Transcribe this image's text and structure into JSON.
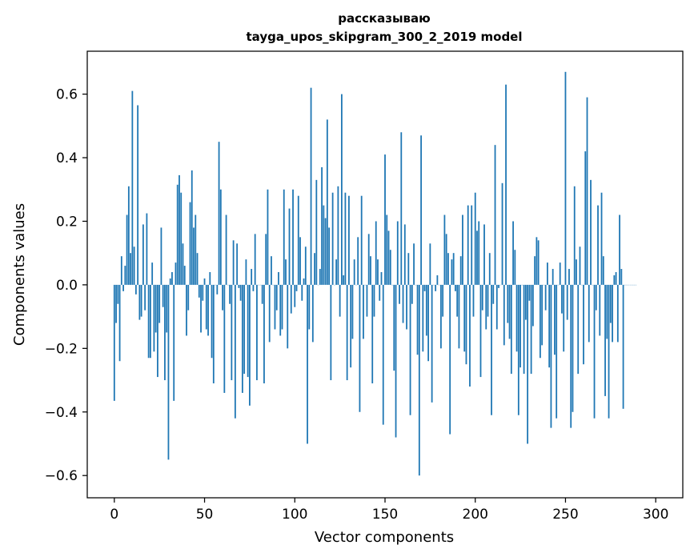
{
  "chart_data": {
    "type": "bar",
    "title": "рассказываю",
    "subtitle": "tayga_upos_skipgram_300_2_2019 model",
    "xlabel": "Vector components",
    "ylabel": "Components values",
    "xlim": [
      -15,
      315
    ],
    "ylim": [
      -0.67,
      0.735
    ],
    "xticks": [
      0,
      50,
      100,
      150,
      200,
      250,
      300
    ],
    "yticks": [
      -0.6,
      -0.4,
      -0.2,
      0.0,
      0.2,
      0.4,
      0.6
    ],
    "ytick_labels": [
      "−0.6",
      "−0.4",
      "−0.2",
      "0.0",
      "0.2",
      "0.4",
      "0.6"
    ],
    "grid": false,
    "legend": "none",
    "bar_color": "#1f77b4",
    "values": [
      -0.365,
      -0.12,
      -0.06,
      -0.24,
      0.09,
      -0.02,
      0.06,
      0.22,
      0.31,
      0.1,
      0.61,
      0.12,
      -0.03,
      0.565,
      -0.11,
      -0.1,
      0.19,
      -0.08,
      0.225,
      -0.23,
      -0.23,
      0.07,
      -0.21,
      -0.15,
      -0.29,
      -0.12,
      0.18,
      -0.07,
      -0.3,
      -0.15,
      -0.55,
      0.02,
      0.04,
      -0.365,
      0.07,
      0.315,
      0.345,
      0.29,
      0.13,
      0.06,
      -0.16,
      -0.08,
      0.26,
      0.36,
      0.18,
      0.22,
      0.1,
      -0.04,
      -0.15,
      -0.05,
      0.02,
      -0.14,
      -0.16,
      0.04,
      -0.23,
      -0.31,
      0.0,
      -0.03,
      0.45,
      0.3,
      -0.08,
      -0.34,
      0.22,
      0.0,
      -0.06,
      -0.3,
      0.14,
      -0.42,
      0.13,
      -0.01,
      -0.05,
      -0.34,
      -0.28,
      0.08,
      -0.29,
      -0.38,
      0.05,
      -0.02,
      0.16,
      -0.3,
      0.0,
      0.0,
      -0.06,
      -0.31,
      0.16,
      0.3,
      -0.18,
      0.09,
      0.0,
      -0.14,
      -0.08,
      0.04,
      -0.16,
      -0.14,
      0.3,
      0.08,
      -0.2,
      0.24,
      -0.09,
      0.3,
      -0.07,
      -0.02,
      0.28,
      0.15,
      -0.05,
      0.02,
      0.12,
      -0.5,
      -0.14,
      0.62,
      -0.18,
      0.1,
      0.33,
      0.0,
      0.05,
      0.37,
      0.25,
      0.21,
      0.52,
      0.18,
      -0.3,
      0.29,
      0.0,
      0.08,
      0.31,
      -0.1,
      0.6,
      0.03,
      0.29,
      -0.3,
      0.28,
      -0.26,
      -0.17,
      0.08,
      0.0,
      0.15,
      -0.4,
      0.28,
      -0.17,
      0.0,
      -0.1,
      0.16,
      0.09,
      -0.31,
      -0.1,
      0.2,
      0.08,
      -0.05,
      0.04,
      -0.44,
      0.41,
      0.22,
      0.17,
      0.11,
      0.0,
      -0.27,
      -0.48,
      0.2,
      -0.06,
      0.48,
      -0.12,
      0.19,
      -0.14,
      0.1,
      -0.41,
      -0.06,
      0.13,
      0.0,
      -0.22,
      -0.6,
      0.47,
      -0.21,
      -0.02,
      -0.16,
      -0.24,
      0.13,
      -0.37,
      0.0,
      -0.02,
      0.03,
      0.0,
      -0.2,
      -0.1,
      0.22,
      0.16,
      0.1,
      -0.47,
      0.08,
      0.1,
      -0.02,
      -0.1,
      -0.2,
      0.09,
      0.22,
      -0.21,
      -0.25,
      0.25,
      -0.32,
      0.25,
      -0.1,
      0.29,
      0.17,
      0.2,
      -0.29,
      -0.08,
      0.19,
      -0.14,
      -0.1,
      0.1,
      -0.41,
      -0.06,
      0.44,
      -0.14,
      -0.01,
      0.0,
      0.32,
      -0.19,
      0.63,
      -0.12,
      -0.17,
      -0.28,
      0.2,
      0.11,
      -0.21,
      -0.41,
      -0.26,
      0.0,
      -0.28,
      -0.11,
      -0.5,
      -0.05,
      -0.28,
      -0.13,
      0.09,
      0.15,
      0.14,
      -0.23,
      -0.19,
      0.0,
      -0.08,
      0.07,
      -0.26,
      -0.45,
      0.05,
      -0.22,
      -0.42,
      0.0,
      0.07,
      -0.09,
      -0.21,
      0.67,
      -0.11,
      0.05,
      -0.45,
      -0.4,
      0.31,
      0.08,
      -0.28,
      0.12,
      0.0,
      -0.25,
      0.42,
      0.59,
      -0.18,
      0.33,
      0.0,
      -0.42,
      -0.08,
      0.25,
      -0.16,
      0.29,
      0.09,
      -0.35,
      -0.17,
      -0.42,
      -0.12,
      -0.18,
      0.03,
      0.04,
      -0.18,
      0.22,
      0.05,
      -0.39,
      0.0,
      0.0,
      0.0,
      0.0,
      0.0,
      0.0,
      0.0
    ]
  }
}
